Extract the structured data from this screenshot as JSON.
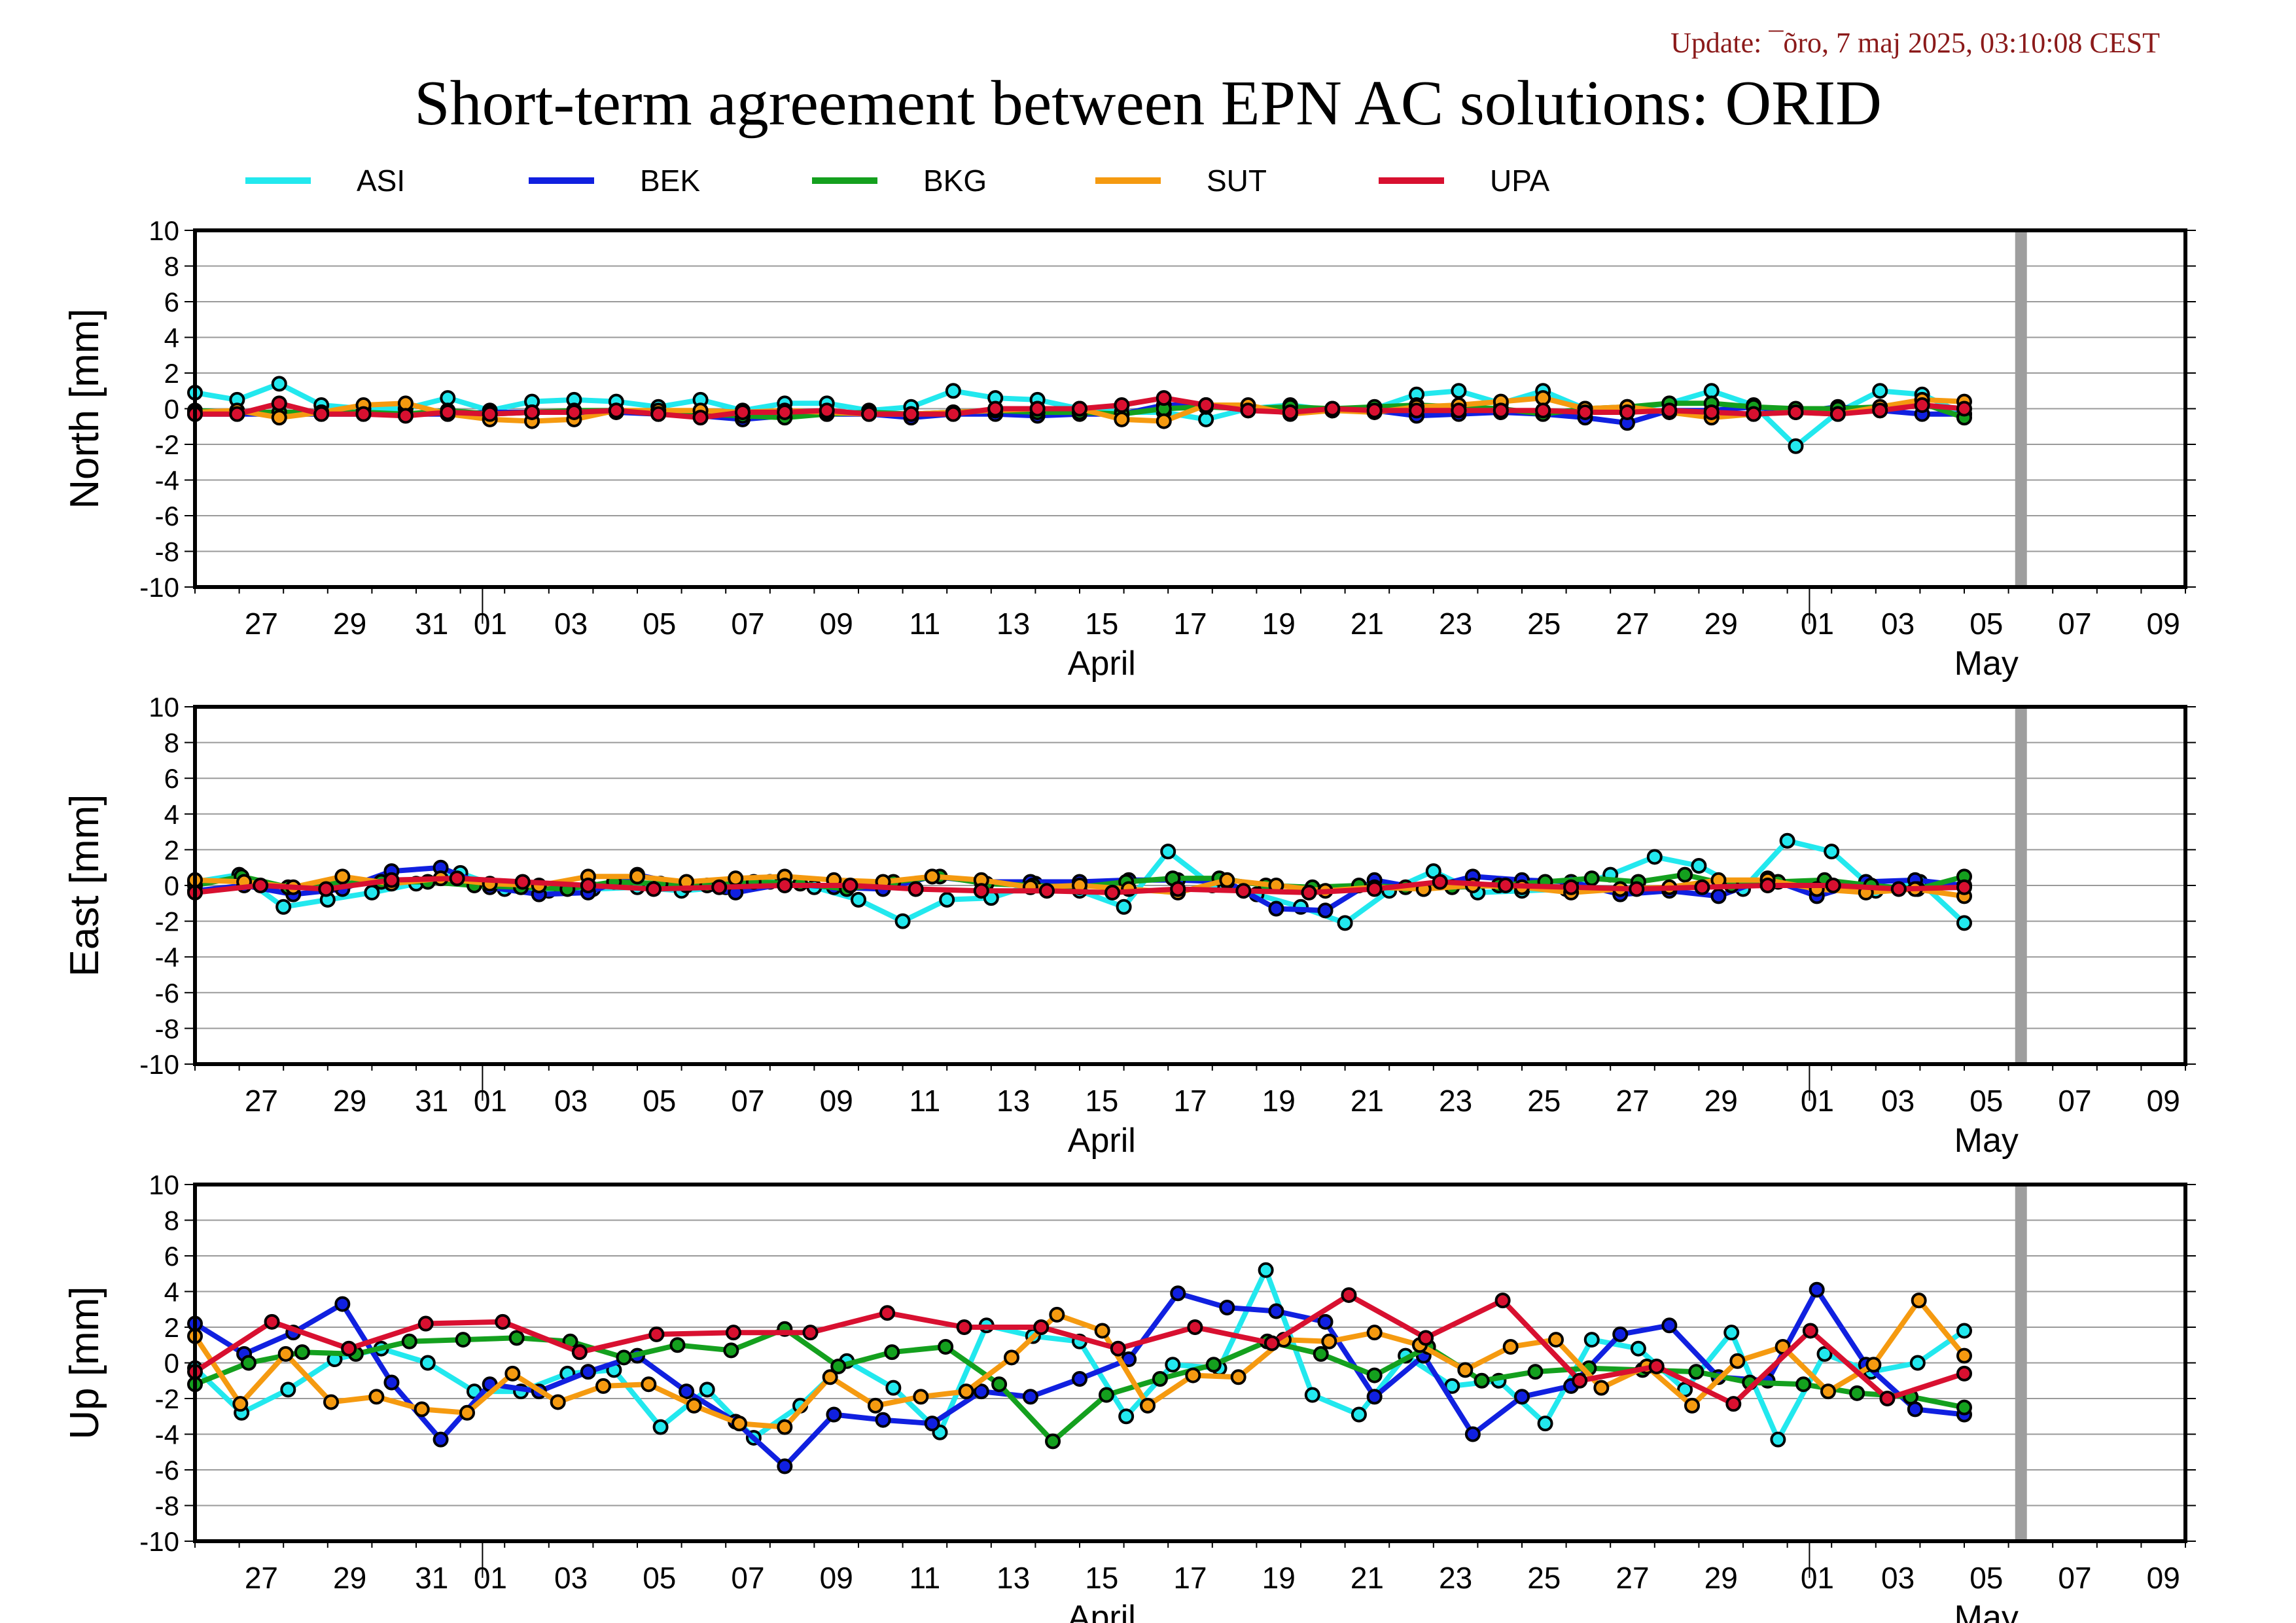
{
  "update_text": "Update: ¯õro, 7 maj 2025, 03:10:08 CEST",
  "title": "Short-term agreement between EPN AC solutions: ORID",
  "colors": {
    "ASI": "#22e8ee",
    "BEK": "#1020e0",
    "BKG": "#14a01e",
    "SUT": "#f59a10",
    "UPA": "#d81030"
  },
  "chart_data": {
    "type": "line",
    "x_axis": {
      "start_date": "2025-03-25",
      "end_date": "2025-05-09",
      "month_labels": [
        {
          "label": "April",
          "date": "2025-04-15"
        },
        {
          "label": "May",
          "date": "2025-05-05"
        }
      ],
      "tick_labels": [
        "27",
        "29",
        "31",
        "01",
        "03",
        "05",
        "07",
        "09",
        "11",
        "13",
        "15",
        "17",
        "19",
        "21",
        "23",
        "25",
        "27",
        "29",
        "01",
        "03",
        "05",
        "07",
        "09"
      ],
      "marker_line_date": "2025-05-05"
    },
    "ylim": [
      -10,
      10
    ],
    "yticks": [
      "10",
      "8",
      "6",
      "4",
      "2",
      "0",
      "-2",
      "-4",
      "-6",
      "-8",
      "-10"
    ],
    "series_names": [
      "ASI",
      "BEK",
      "BKG",
      "SUT",
      "UPA"
    ],
    "panels": [
      {
        "ylabel": "North [mm]",
        "series": [
          {
            "name": "ASI",
            "values": [
              0.9,
              0.5,
              1.4,
              0.2,
              0.0,
              0.0,
              0.6,
              -0.1,
              0.4,
              0.5,
              0.4,
              0.1,
              0.5,
              -0.1,
              0.3,
              0.3,
              -0.1,
              0.1,
              1.0,
              0.6,
              0.5,
              0.0,
              -0.2,
              -0.2,
              -0.6,
              0.0,
              0.2,
              -0.1,
              0.0,
              0.8,
              1.0,
              0.3,
              1.0,
              0.0,
              0.0,
              0.3,
              1.0,
              0.2,
              -2.1,
              -0.2,
              1.0,
              0.8,
              -0.3
            ]
          },
          {
            "name": "BEK",
            "values": [
              -0.3,
              -0.3,
              -0.3,
              -0.3,
              -0.3,
              -0.3,
              -0.3,
              -0.2,
              -0.2,
              -0.2,
              -0.2,
              -0.3,
              -0.4,
              -0.6,
              -0.4,
              -0.3,
              -0.3,
              -0.5,
              -0.3,
              -0.3,
              -0.4,
              -0.3,
              -0.3,
              0.2,
              0.2,
              -0.1,
              -0.1,
              -0.1,
              -0.1,
              -0.4,
              -0.3,
              -0.2,
              -0.3,
              -0.5,
              -0.8,
              -0.1,
              -0.1,
              0.1,
              -0.2,
              0.1,
              -0.1,
              -0.3,
              -0.3
            ]
          },
          {
            "name": "BKG",
            "values": [
              -0.1,
              -0.2,
              -0.2,
              -0.2,
              -0.2,
              -0.3,
              -0.1,
              -0.3,
              -0.2,
              -0.1,
              -0.1,
              -0.3,
              -0.3,
              -0.4,
              -0.5,
              -0.3,
              -0.2,
              -0.3,
              -0.2,
              -0.1,
              -0.2,
              -0.2,
              -0.3,
              0.0,
              0.1,
              0.0,
              0.1,
              0.0,
              0.1,
              0.2,
              0.1,
              0.0,
              -0.3,
              0.0,
              0.1,
              0.3,
              0.3,
              0.1,
              0.0,
              0.0,
              0.1,
              0.3,
              -0.5
            ]
          },
          {
            "name": "SUT",
            "values": [
              -0.2,
              -0.1,
              -0.5,
              -0.2,
              0.2,
              0.3,
              -0.3,
              -0.6,
              -0.7,
              -0.6,
              -0.1,
              -0.1,
              -0.1,
              -0.2,
              -0.1,
              -0.2,
              -0.3,
              -0.3,
              -0.2,
              -0.1,
              0.0,
              0.0,
              -0.6,
              -0.7,
              0.2,
              0.2,
              -0.3,
              -0.1,
              -0.2,
              0.1,
              0.2,
              0.4,
              0.6,
              0.0,
              0.1,
              -0.2,
              -0.5,
              -0.3,
              -0.2,
              -0.3,
              0.1,
              0.5,
              0.4
            ]
          },
          {
            "name": "UPA",
            "values": [
              -0.3,
              -0.3,
              0.3,
              -0.3,
              -0.3,
              -0.4,
              -0.2,
              -0.3,
              -0.2,
              -0.2,
              -0.1,
              -0.3,
              -0.5,
              -0.2,
              -0.2,
              -0.1,
              -0.3,
              -0.3,
              -0.3,
              0.0,
              0.0,
              0.0,
              0.2,
              0.6,
              0.2,
              -0.1,
              -0.2,
              0.0,
              -0.1,
              -0.1,
              -0.1,
              -0.1,
              -0.1,
              -0.2,
              -0.2,
              -0.1,
              -0.2,
              -0.3,
              -0.2,
              -0.3,
              -0.1,
              0.2,
              0.0
            ]
          }
        ]
      },
      {
        "ylabel": "East [mm]",
        "series": [
          {
            "name": "ASI",
            "values": [
              0.2,
              0.6,
              -1.2,
              -0.8,
              -0.4,
              0.1,
              0.7,
              -0.2,
              -0.3,
              -0.2,
              -0.1,
              -0.3,
              -0.1,
              0.2,
              -0.1,
              -0.8,
              -2.0,
              -0.8,
              -0.7,
              0.1,
              -0.3,
              -1.2,
              1.9,
              0.0,
              -0.5,
              -1.2,
              -2.1,
              -0.3,
              0.8,
              -0.4,
              -0.3,
              -0.2,
              0.6,
              1.6,
              1.1,
              -0.2,
              2.5,
              1.9,
              -0.3,
              0.2,
              -2.1
            ]
          },
          {
            "name": "BEK",
            "values": [
              -0.3,
              0.0,
              -0.5,
              -0.2,
              0.8,
              1.0,
              -0.1,
              -0.5,
              -0.4,
              0.6,
              0.0,
              -0.4,
              0.1,
              -0.1,
              -0.2,
              0.5,
              0.2,
              0.2,
              0.2,
              0.3,
              0.3,
              0.2,
              -1.3,
              -1.4,
              0.3,
              -0.2,
              0.5,
              0.3,
              0.2,
              -0.5,
              -0.3,
              -0.6,
              0.4,
              -0.6,
              0.2,
              0.3,
              0.0
            ]
          },
          {
            "name": "BKG",
            "values": [
              0.0,
              0.5,
              -0.1,
              0.1,
              0.2,
              0.2,
              0.0,
              -0.1,
              -0.2,
              0.2,
              0.1,
              0.0,
              0.2,
              0.1,
              -0.2,
              0.2,
              0.5,
              0.1,
              0.0,
              -0.1,
              0.2,
              0.4,
              0.4,
              0.0,
              -0.1,
              0.0,
              -0.1,
              -0.1,
              0.0,
              0.2,
              0.4,
              0.2,
              0.6,
              0.0,
              0.2,
              0.3,
              0.0,
              -0.2,
              0.5
            ]
          },
          {
            "name": "SUT",
            "values": [
              0.3,
              0.2,
              -0.1,
              0.5,
              0.1,
              0.4,
              0.1,
              0.0,
              0.5,
              0.5,
              0.2,
              0.4,
              0.5,
              0.3,
              0.2,
              0.5,
              0.3,
              -0.1,
              0.0,
              -0.2,
              -0.4,
              0.3,
              0.0,
              -0.3,
              -0.1,
              -0.2,
              0.0,
              -0.1,
              -0.4,
              -0.2,
              -0.1,
              0.3,
              0.3,
              -0.2,
              -0.4,
              -0.2,
              -0.6
            ]
          },
          {
            "name": "UPA",
            "values": [
              -0.4,
              0.0,
              -0.2,
              0.3,
              0.4,
              0.2,
              0.0,
              -0.2,
              -0.1,
              0.0,
              0.0,
              -0.2,
              -0.3,
              -0.3,
              -0.4,
              -0.2,
              -0.3,
              -0.4,
              -0.2,
              0.2,
              0.0,
              -0.1,
              -0.2,
              -0.1,
              0.0,
              0.0,
              -0.2,
              -0.1
            ]
          }
        ]
      },
      {
        "ylabel": "Up [mm]",
        "series": [
          {
            "name": "ASI",
            "values": [
              -0.3,
              -2.8,
              -1.5,
              0.2,
              0.8,
              0.0,
              -1.6,
              -1.6,
              -0.6,
              -0.4,
              -3.6,
              -1.5,
              -4.2,
              -2.4,
              0.1,
              -1.4,
              -3.9,
              2.1,
              1.5,
              1.2,
              -3.0,
              -0.1,
              -0.3,
              5.2,
              -1.8,
              -2.9,
              0.4,
              -1.3,
              -1.0,
              -3.4,
              1.3,
              0.8,
              -1.5,
              1.7,
              -4.3,
              0.5,
              -0.5,
              0.0,
              1.8
            ]
          },
          {
            "name": "BEK",
            "values": [
              2.2,
              0.5,
              1.7,
              3.3,
              -1.1,
              -4.3,
              -1.2,
              -1.6,
              -0.5,
              0.4,
              -1.6,
              -3.3,
              -5.8,
              -2.9,
              -3.2,
              -3.4,
              -1.6,
              -1.9,
              -0.9,
              0.2,
              3.9,
              3.1,
              2.9,
              2.3,
              -1.9,
              0.4,
              -4.0,
              -1.9,
              -1.3,
              1.6,
              2.1,
              -0.8,
              -1.0,
              4.1,
              -0.1,
              -2.6,
              -2.9
            ]
          },
          {
            "name": "BKG",
            "values": [
              -1.2,
              0.0,
              0.6,
              0.5,
              1.2,
              1.3,
              1.4,
              1.2,
              0.3,
              1.0,
              0.7,
              1.9,
              -0.2,
              0.6,
              0.9,
              -1.2,
              -4.4,
              -1.8,
              -0.9,
              -0.1,
              1.2,
              0.5,
              -0.7,
              0.9,
              -1.0,
              -0.5,
              -0.3,
              -0.4,
              -0.5,
              -1.1,
              -1.2,
              -1.7,
              -1.9,
              -2.5
            ]
          },
          {
            "name": "SUT",
            "values": [
              1.5,
              -2.3,
              0.5,
              -2.2,
              -1.9,
              -2.6,
              -2.8,
              -0.6,
              -2.2,
              -1.3,
              -1.2,
              -2.4,
              -3.4,
              -3.6,
              -0.8,
              -2.4,
              -1.9,
              -1.6,
              0.3,
              2.7,
              1.8,
              -2.4,
              -0.7,
              -0.8,
              1.3,
              1.2,
              1.7,
              1.0,
              -0.4,
              0.9,
              1.3,
              -1.4,
              -0.2,
              -2.4,
              0.1,
              0.9,
              -1.6,
              -0.1,
              3.5,
              0.4
            ]
          },
          {
            "name": "UPA",
            "values": [
              -0.5,
              2.3,
              0.8,
              2.2,
              2.3,
              0.6,
              1.6,
              1.7,
              1.7,
              2.8,
              2.0,
              2.0,
              0.8,
              2.0,
              1.1,
              3.8,
              1.4,
              3.5,
              -1.0,
              -0.2,
              -2.3,
              1.8,
              -2.0,
              -0.6
            ]
          }
        ]
      }
    ]
  }
}
